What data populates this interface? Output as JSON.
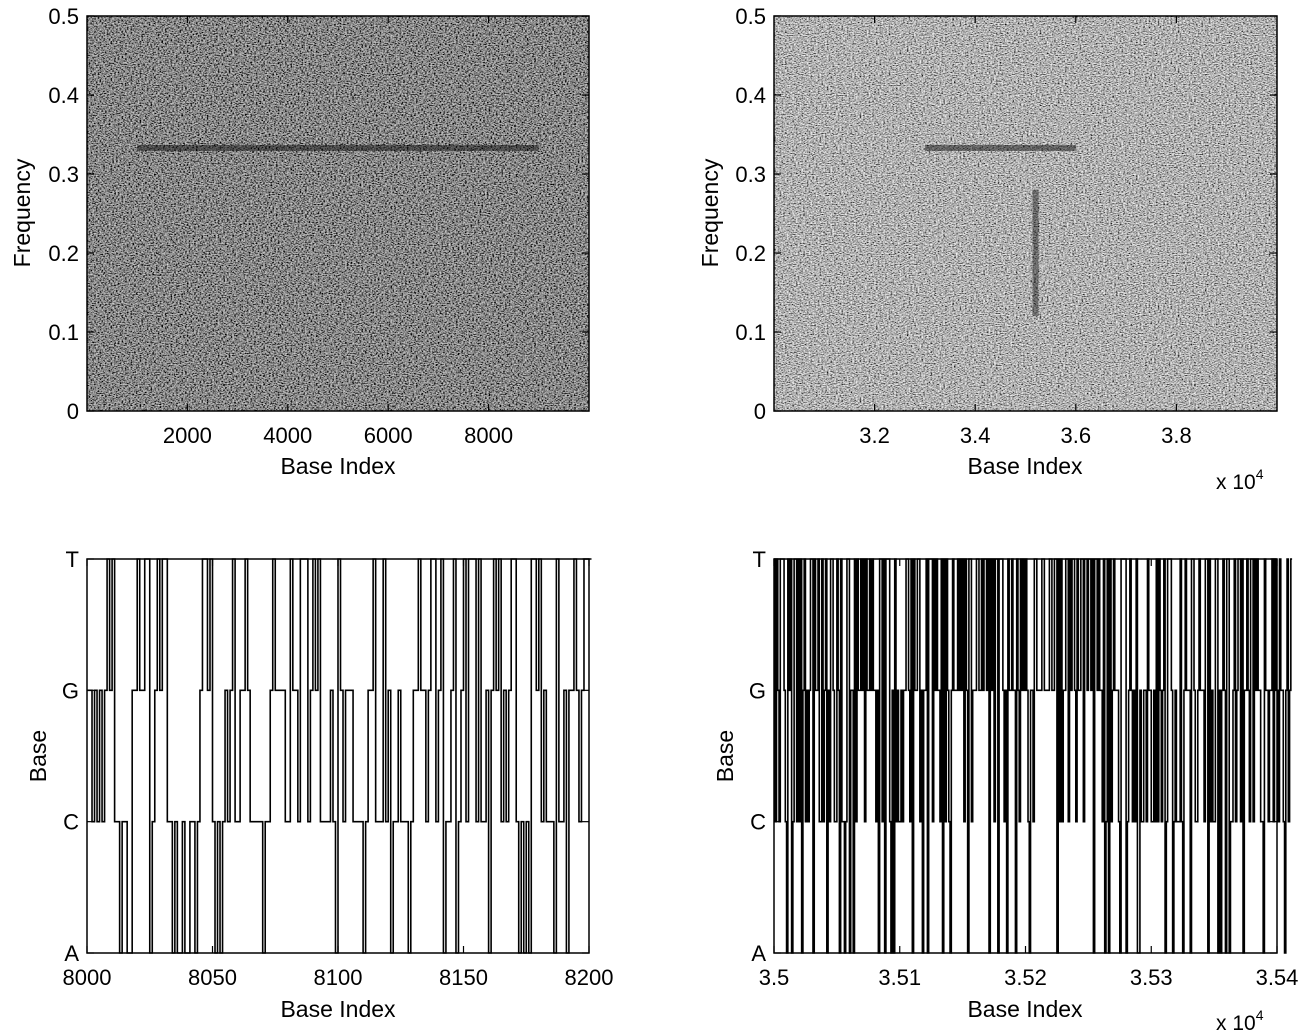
{
  "chart_data": [
    {
      "type": "heatmap",
      "colormap": "gray",
      "xlabel": "Base Index",
      "ylabel": "Frequency",
      "xlim": [
        1,
        10000
      ],
      "ylim": [
        0,
        0.5
      ],
      "xticks": [
        2000,
        4000,
        6000,
        8000
      ],
      "xtick_labels": [
        "2000",
        "4000",
        "6000",
        "8000"
      ],
      "yticks": [
        0,
        0.1,
        0.2,
        0.3,
        0.4,
        0.5
      ],
      "ytick_labels": [
        "0",
        "0.1",
        "0.2",
        "0.3",
        "0.4",
        "0.5"
      ],
      "x_multiplier": "",
      "mean_intensity": 0.2,
      "features": [
        {
          "kind": "horizontal-band",
          "frequency": 0.333,
          "x_range": [
            1000,
            9000
          ]
        }
      ]
    },
    {
      "type": "heatmap",
      "colormap": "gray",
      "xlabel": "Base Index",
      "ylabel": "Frequency",
      "xlim": [
        30000,
        40000
      ],
      "ylim": [
        0,
        0.5
      ],
      "xticks": [
        32000,
        34000,
        36000,
        38000
      ],
      "xtick_labels": [
        "3.2",
        "3.4",
        "3.6",
        "3.8"
      ],
      "yticks": [
        0,
        0.1,
        0.2,
        0.3,
        0.4,
        0.5
      ],
      "ytick_labels": [
        "0",
        "0.1",
        "0.2",
        "0.3",
        "0.4",
        "0.5"
      ],
      "x_multiplier": {
        "base": "x 10",
        "exponent": "4"
      },
      "mean_intensity": 0.42,
      "features": [
        {
          "kind": "horizontal-band",
          "frequency": 0.333,
          "x_range": [
            33000,
            36000
          ]
        },
        {
          "kind": "vertical-streak",
          "x": 35200,
          "frequency_range": [
            0.12,
            0.28
          ]
        }
      ]
    },
    {
      "type": "line",
      "style": "step",
      "xlabel": "Base Index",
      "ylabel": "Base",
      "xlim": [
        8000,
        8200
      ],
      "ylim": [
        0,
        3
      ],
      "xticks": [
        8000,
        8050,
        8100,
        8150,
        8200
      ],
      "xtick_labels": [
        "8000",
        "8050",
        "8100",
        "8150",
        "8200"
      ],
      "ytick_values": [
        0,
        1,
        2,
        3
      ],
      "ytick_labels": [
        "A",
        "C",
        "G",
        "T"
      ],
      "x_multiplier": "",
      "x_start": 8000,
      "x_step": 1,
      "y": [
        2,
        2,
        1,
        2,
        1,
        2,
        1,
        2,
        3,
        2,
        3,
        1,
        1,
        0,
        1,
        1,
        0,
        0,
        2,
        2,
        3,
        2,
        2,
        3,
        3,
        0,
        1,
        2,
        3,
        2,
        3,
        3,
        1,
        1,
        0,
        1,
        0,
        0,
        1,
        0,
        0,
        1,
        1,
        0,
        1,
        2,
        3,
        3,
        2,
        3,
        1,
        0,
        1,
        0,
        1,
        2,
        1,
        2,
        3,
        1,
        1,
        2,
        2,
        3,
        2,
        1,
        1,
        1,
        1,
        1,
        0,
        1,
        1,
        2,
        3,
        2,
        2,
        2,
        2,
        1,
        1,
        3,
        2,
        2,
        1,
        3,
        3,
        3,
        1,
        2,
        3,
        2,
        3,
        1,
        1,
        1,
        1,
        2,
        1,
        0,
        3,
        2,
        1,
        2,
        2,
        2,
        1,
        1,
        1,
        1,
        0,
        1,
        2,
        2,
        3,
        1,
        1,
        1,
        3,
        1,
        2,
        0,
        1,
        1,
        2,
        1,
        1,
        1,
        0,
        1,
        2,
        2,
        3,
        2,
        2,
        1,
        2,
        3,
        3,
        1,
        2,
        3,
        0,
        1,
        1,
        2,
        3,
        0,
        1,
        2,
        3,
        1,
        3,
        3,
        3,
        1,
        3,
        1,
        1,
        2,
        0,
        2,
        3,
        2,
        3,
        1,
        2,
        1,
        2,
        3,
        3,
        1,
        0,
        1,
        0,
        1,
        0,
        3,
        3,
        2,
        3,
        1,
        2,
        1,
        1,
        1,
        0,
        3,
        1,
        1,
        2,
        0,
        2,
        2,
        3,
        2,
        1,
        2,
        3,
        3,
        3
      ]
    },
    {
      "type": "line",
      "style": "step",
      "xlabel": "Base Index",
      "ylabel": "Base",
      "xlim": [
        35000,
        35400
      ],
      "ylim": [
        0,
        3
      ],
      "xticks": [
        35000,
        35100,
        35200,
        35300,
        35400
      ],
      "xtick_labels": [
        "3.5",
        "3.51",
        "3.52",
        "3.53",
        "3.54"
      ],
      "ytick_values": [
        0,
        1,
        2,
        3
      ],
      "ytick_labels": [
        "A",
        "C",
        "G",
        "T"
      ],
      "x_multiplier": {
        "base": "x 10",
        "exponent": "4"
      },
      "x_start": 35000,
      "x_step": 1,
      "y": [
        3,
        1,
        3,
        2,
        1,
        3,
        3,
        3,
        2,
        1,
        0,
        3,
        2,
        3,
        0,
        1,
        3,
        3,
        1,
        3,
        1,
        3,
        0,
        2,
        3,
        1,
        2,
        1,
        2,
        3,
        3,
        0,
        3,
        2,
        2,
        3,
        1,
        1,
        3,
        1,
        2,
        3,
        0,
        2,
        1,
        3,
        3,
        2,
        1,
        1,
        3,
        2,
        0,
        3,
        1,
        1,
        0,
        1,
        3,
        3,
        0,
        2,
        2,
        0,
        3,
        1,
        3,
        2,
        2,
        3,
        2,
        3,
        1,
        3,
        2,
        2,
        3,
        2,
        3,
        2,
        2,
        1,
        2,
        0,
        3,
        3,
        1,
        3,
        0,
        3,
        3,
        3,
        1,
        0,
        2,
        0,
        3,
        1,
        2,
        1,
        1,
        2,
        1,
        2,
        2,
        3,
        3,
        2,
        1,
        3,
        0,
        3,
        2,
        2,
        3,
        3,
        1,
        2,
        0,
        2,
        2,
        3,
        0,
        3,
        3,
        3,
        1,
        3,
        2,
        3,
        2,
        2,
        1,
        3,
        0,
        3,
        1,
        3,
        2,
        1,
        0,
        2,
        3,
        2,
        2,
        2,
        3,
        2,
        3,
        2,
        3,
        1,
        3,
        2,
        0,
        3,
        3,
        1,
        2,
        2,
        2,
        3,
        3,
        2,
        2,
        3,
        2,
        3,
        3,
        2,
        3,
        0,
        3,
        2,
        3,
        1,
        3,
        3,
        0,
        3,
        3,
        3,
        2,
        1,
        2,
        0,
        3,
        2,
        2,
        3,
        2,
        2,
        0,
        3,
        2,
        1,
        3,
        2,
        3,
        2,
        3,
        2,
        1,
        0,
        2,
        2,
        1,
        3,
        3,
        2,
        2,
        2,
        2,
        3,
        3,
        2,
        2,
        2,
        2,
        3,
        3,
        2,
        2,
        3,
        3,
        0,
        3,
        1,
        3,
        1,
        2,
        2,
        3,
        3,
        1,
        3,
        2,
        3,
        3,
        2,
        1,
        3,
        2,
        2,
        3,
        3,
        1,
        3,
        3,
        2,
        3,
        3,
        2,
        3,
        0,
        3,
        3,
        2,
        3,
        2,
        2,
        1,
        3,
        0,
        1,
        3,
        0,
        3,
        1,
        2,
        3,
        2,
        2,
        2,
        1,
        0,
        3,
        3,
        3,
        3,
        0,
        1,
        2,
        3,
        2,
        1,
        2,
        1,
        3,
        0,
        0,
        2,
        1,
        1,
        2,
        2,
        1,
        3,
        2,
        2,
        1,
        1,
        2,
        1,
        3,
        1,
        3,
        2,
        1,
        2,
        3,
        0,
        1,
        3,
        3,
        3,
        2,
        0,
        1,
        2,
        1,
        1,
        1,
        3,
        1,
        0,
        2,
        3,
        2,
        2,
        2,
        0,
        3,
        3,
        2,
        1,
        1,
        2,
        3,
        2,
        2,
        2,
        1,
        3,
        3,
        0,
        3,
        1,
        2,
        1,
        1,
        3,
        3,
        0,
        2,
        0,
        2,
        3,
        2,
        0,
        3,
        3,
        0,
        1,
        1,
        2,
        3,
        1,
        2,
        3,
        3,
        1,
        3,
        0,
        2,
        2,
        3,
        2,
        1,
        3,
        3,
        1,
        3,
        2,
        3,
        2,
        2,
        1,
        1,
        0,
        3,
        2,
        2,
        1,
        2,
        2,
        3,
        1,
        3,
        2,
        2,
        1,
        3,
        2,
        2,
        1,
        0,
        2,
        3,
        1,
        2,
        3
      ]
    }
  ]
}
